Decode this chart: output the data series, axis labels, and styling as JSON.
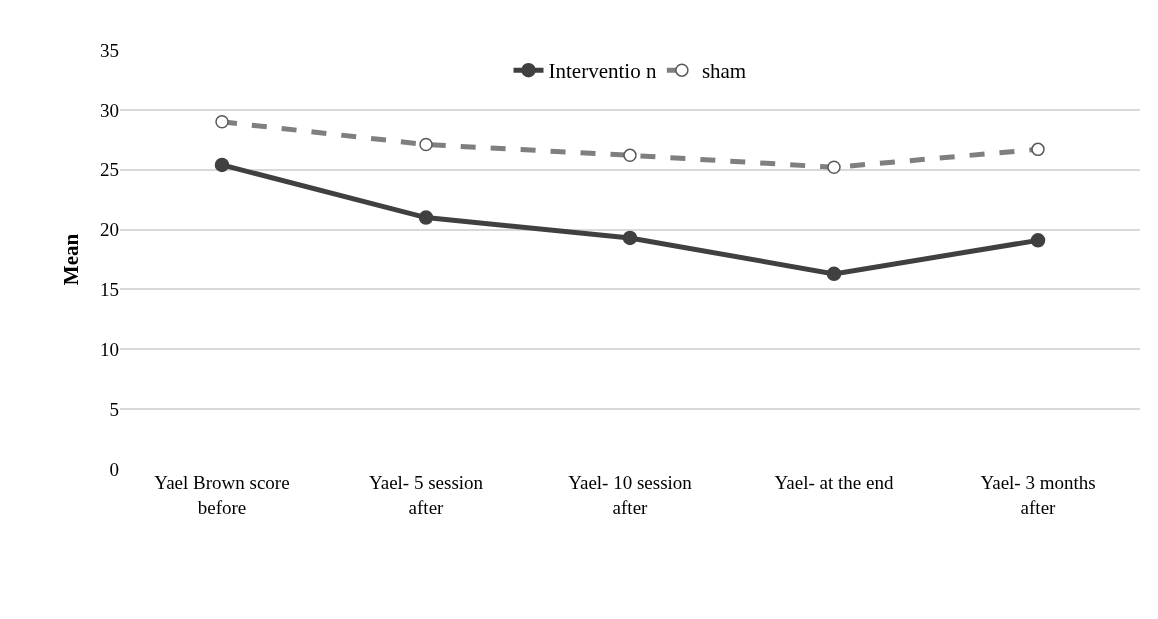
{
  "chart_data": {
    "type": "line",
    "ylabel": "Mean",
    "categories": [
      "Yael Brown score before",
      "Yael- 5 session after",
      "Yael- 10 session after",
      "Yael- at the end",
      "Yael- 3 months after"
    ],
    "series": [
      {
        "name": "Interventio n",
        "color": "#404040",
        "values": [
          25.4,
          21.0,
          19.3,
          16.3,
          19.1
        ],
        "line_style": "solid"
      },
      {
        "name": "sham",
        "color": "#7f7f7f",
        "values": [
          29.0,
          27.1,
          26.2,
          25.2,
          26.7
        ],
        "line_style": "dashed"
      }
    ],
    "ylim": [
      0,
      35
    ],
    "yticks": [
      0,
      5,
      10,
      15,
      20,
      25,
      30,
      35
    ],
    "grid": "y",
    "legend": "top",
    "marker": "circle"
  }
}
